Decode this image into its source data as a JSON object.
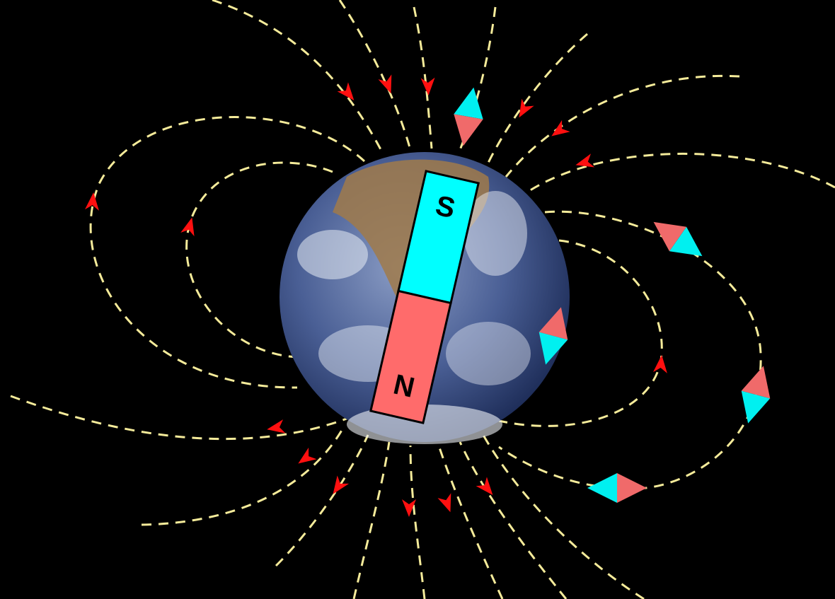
{
  "magnet": {
    "top_label": "S",
    "bottom_label": "N"
  }
}
